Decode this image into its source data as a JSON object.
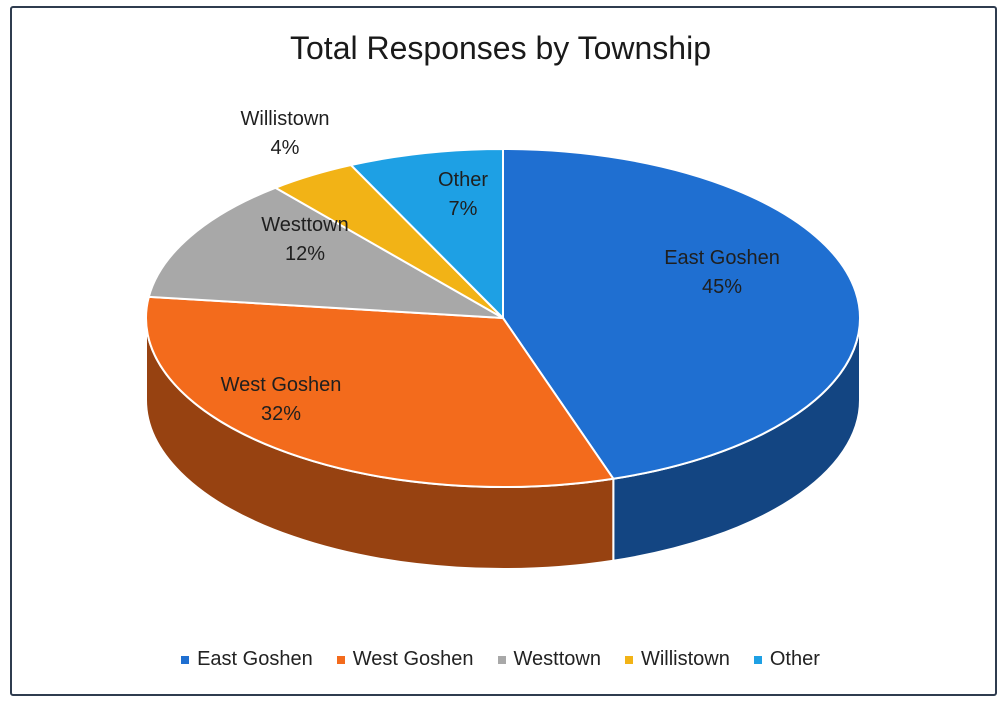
{
  "chart_data": {
    "type": "pie",
    "title": "Total Responses by Township",
    "categories": [
      "East Goshen",
      "West Goshen",
      "Westtown",
      "Willistown",
      "Other"
    ],
    "values": [
      45,
      32,
      12,
      4,
      7
    ],
    "labels": [
      "45%",
      "32%",
      "12%",
      "4%",
      "7%"
    ],
    "colors": [
      "#1f6fd1",
      "#f36b1c",
      "#a8a8a8",
      "#f2b316",
      "#1ea0e4"
    ],
    "legend_position": "bottom"
  }
}
